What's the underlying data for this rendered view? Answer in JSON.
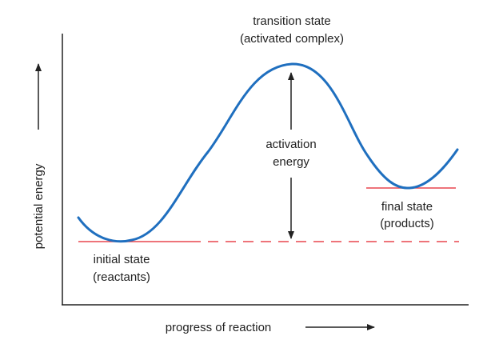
{
  "labels": {
    "transition_line1": "transition state",
    "transition_line2": "(activated complex)",
    "activation_line1": "activation",
    "activation_line2": "energy",
    "final_line1": "final state",
    "final_line2": "(products)",
    "initial_line1": "initial state",
    "initial_line2": "(reactants)",
    "y_axis": "potential energy",
    "x_axis": "progress of reaction"
  },
  "colors": {
    "curve": "#1f6fbf",
    "baseline": "#e8474f",
    "axis": "#222222",
    "text": "#222222"
  }
}
